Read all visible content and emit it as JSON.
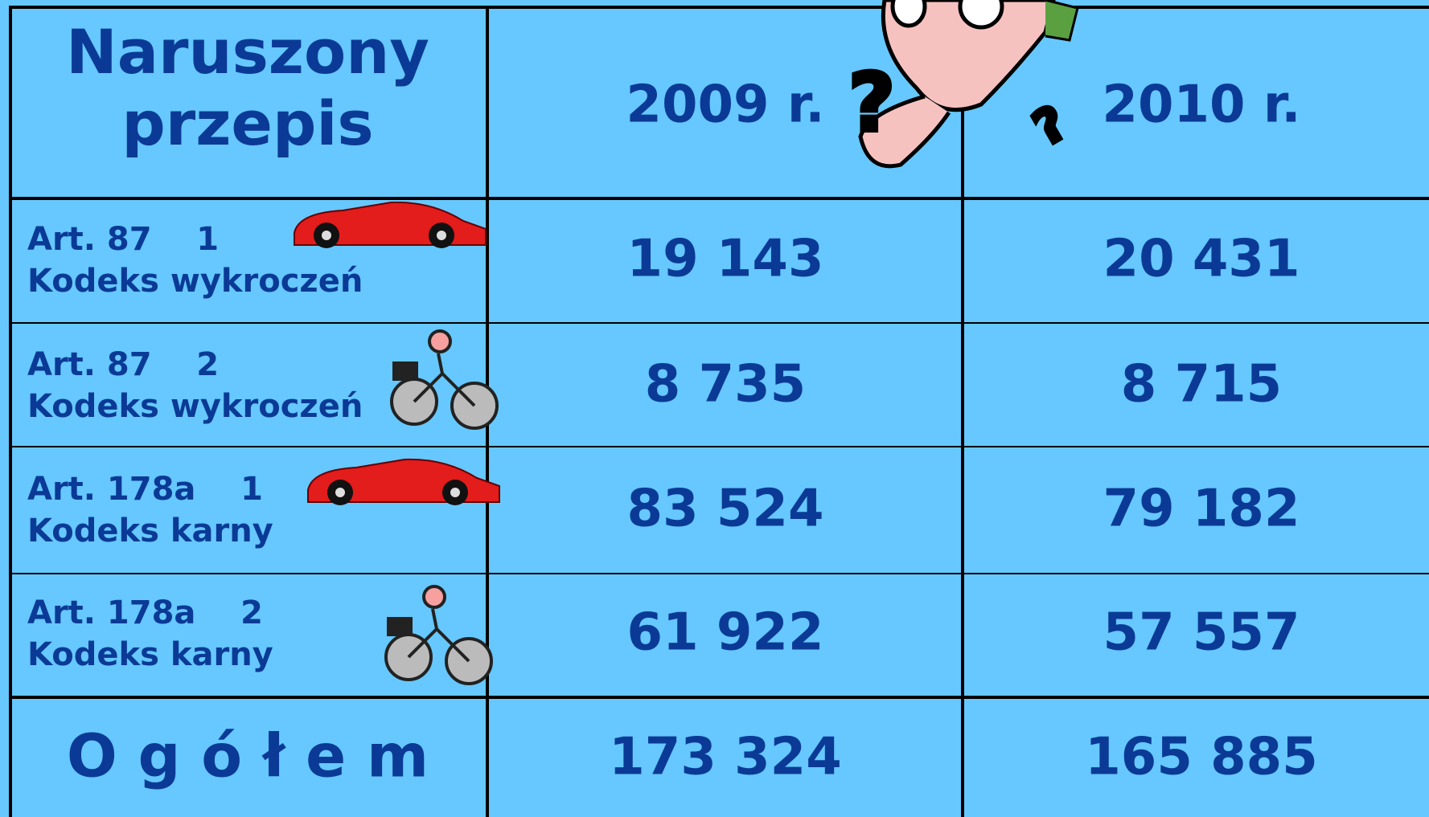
{
  "table": {
    "header": {
      "rule": [
        "Naruszony",
        "przepis"
      ],
      "years": [
        "2009 r.",
        "2010 r."
      ]
    },
    "rows": [
      {
        "article": "Art. 87    1",
        "code": "Kodeks wykroczeń",
        "values": [
          "19 143",
          "20 431"
        ]
      },
      {
        "article": "Art. 87    2",
        "code": "Kodeks wykroczeń",
        "values": [
          "8 735",
          "8 715"
        ]
      },
      {
        "article": "Art. 178a    1",
        "code": "Kodeks karny",
        "values": [
          "83 524",
          "79 182"
        ]
      },
      {
        "article": "Art. 178a    2",
        "code": "Kodeks karny",
        "values": [
          "61 922",
          "57 557"
        ]
      }
    ],
    "total": {
      "label": "O g ó ł e m",
      "values": [
        "173 324",
        "165 885"
      ]
    }
  }
}
